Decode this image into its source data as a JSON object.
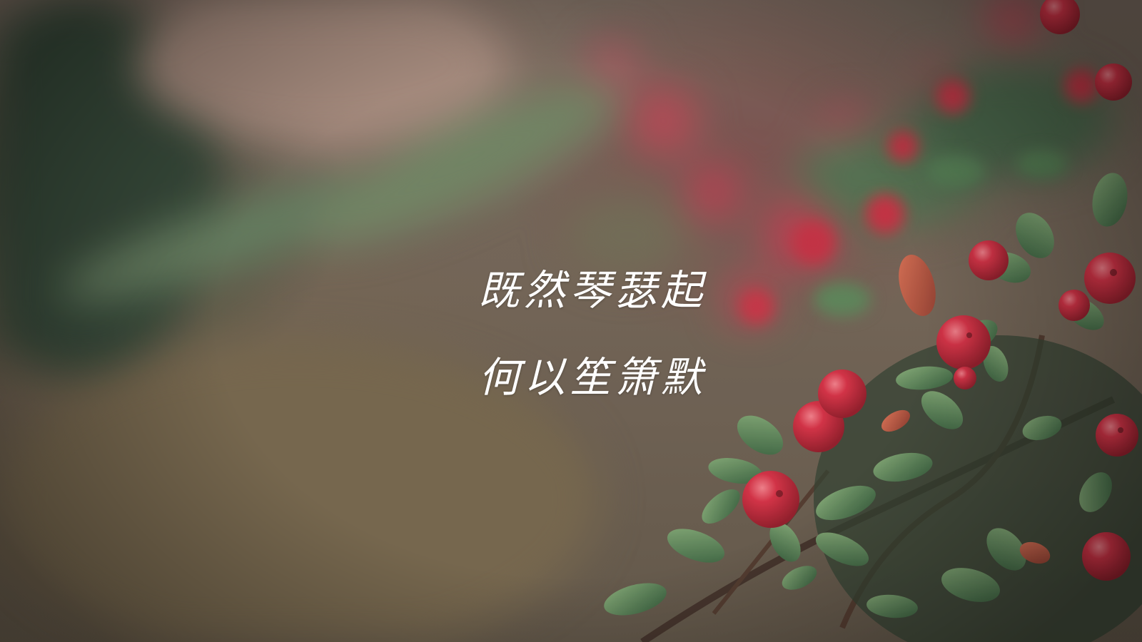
{
  "poem": {
    "line1": "既然琴瑟起",
    "line2": "何以笙箫默"
  },
  "palette": {
    "berry": "#c8263a",
    "berry_dark": "#9c1626",
    "leaf": "#3f6a44",
    "leaf_light": "#6d9a63",
    "background_dark": "#2f4632",
    "background_warm": "#7a6658"
  }
}
